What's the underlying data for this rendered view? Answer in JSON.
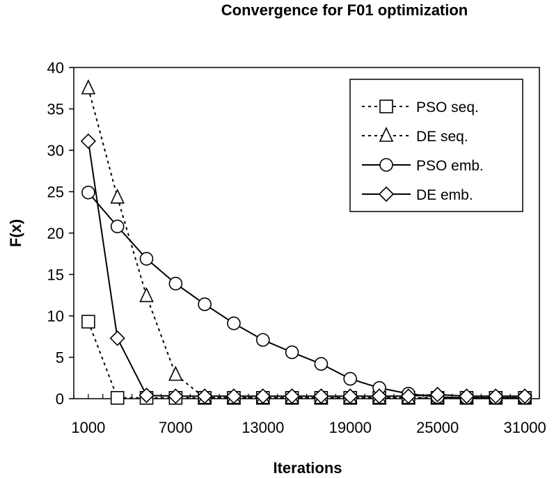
{
  "chart_data": {
    "type": "line",
    "title": "Convergence for F01 optimization",
    "xlabel": "Iterations",
    "ylabel": "F(x)",
    "ylim": [
      0,
      40
    ],
    "yticks": [
      "0",
      "5",
      "10",
      "15",
      "20",
      "25",
      "30",
      "35",
      "40"
    ],
    "xticks": [
      "1000",
      "7000",
      "13000",
      "19000",
      "25000",
      "31000"
    ],
    "x": [
      1000,
      3000,
      5000,
      7000,
      9000,
      11000,
      13000,
      15000,
      17000,
      19000,
      21000,
      23000,
      25000,
      27000,
      29000,
      31000
    ],
    "series": [
      {
        "name": "PSO seq.",
        "line": "dotted",
        "marker": "square",
        "values": [
          9.3,
          0.1,
          0.1,
          0.1,
          0.1,
          0.1,
          0.1,
          0.1,
          0.1,
          0.1,
          0.1,
          0.1,
          0.1,
          0.1,
          0.1,
          0.1
        ]
      },
      {
        "name": "DE seq.",
        "line": "dotted",
        "marker": "triangle",
        "values": [
          37.5,
          24.3,
          12.4,
          2.9,
          0.1,
          0.1,
          0.1,
          0.1,
          0.1,
          0.1,
          0.1,
          0.1,
          0.1,
          0.1,
          0.1,
          0.1
        ]
      },
      {
        "name": "PSO emb.",
        "line": "solid",
        "marker": "circle",
        "values": [
          24.9,
          20.8,
          16.9,
          13.9,
          11.4,
          9.1,
          7.1,
          5.6,
          4.2,
          2.4,
          1.3,
          0.6,
          0.2,
          0.1,
          0.1,
          0.1
        ]
      },
      {
        "name": "DE emb.",
        "line": "solid",
        "marker": "diamond",
        "values": [
          31.1,
          7.3,
          0.4,
          0.3,
          0.3,
          0.3,
          0.3,
          0.3,
          0.3,
          0.3,
          0.3,
          0.3,
          0.5,
          0.3,
          0.3,
          0.3
        ]
      }
    ],
    "legend_position": "top-right",
    "grid": false
  }
}
